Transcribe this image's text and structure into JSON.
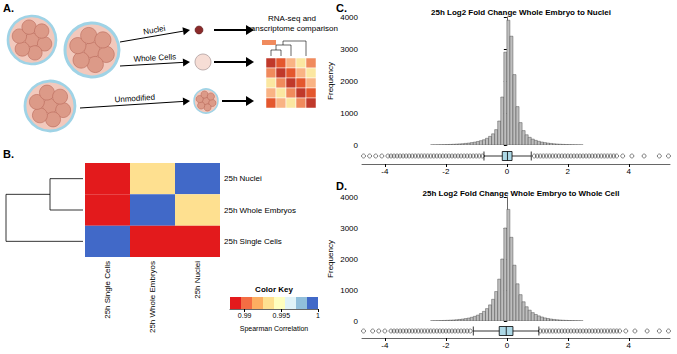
{
  "panels": [
    "A.",
    "B.",
    "C.",
    "D."
  ],
  "diagram": {
    "labels": [
      "Nuclei",
      "Whole Cells",
      "Unmodified"
    ],
    "target": [
      "RNA-seq and",
      "transcriptome comparison"
    ]
  },
  "chart_data": [
    {
      "type": "heatmap",
      "rows": [
        "25h Nuclei",
        "25h Whole Embryos",
        "25h Single Cells"
      ],
      "columns": [
        "25h Single Cells",
        "25h Whole Embryos",
        "25h Nuclei"
      ],
      "cells": [
        [
          0.988,
          0.993,
          1
        ],
        [
          0.988,
          1,
          0.993
        ],
        [
          1,
          0.988,
          0.988
        ]
      ],
      "colorbar": {
        "title": "Color Key",
        "label": "Spearman Correlation",
        "range": [
          0.988,
          1
        ],
        "ticks": [
          0.99,
          0.995,
          1
        ],
        "colors": [
          "#e31a1c",
          "#f46d43",
          "#fdae61",
          "#fee090",
          "#ffffbf",
          "#e0f3f8",
          "#91bfdb",
          "#4169c8"
        ]
      }
    },
    {
      "type": "histogram",
      "title": "25h Log2 Fold Change Whole Embryo to Nuclei",
      "y_label": "Frequency",
      "color": "#bebebe",
      "bins": [
        -2.5,
        -2.4,
        -2.3,
        -2.2,
        -2.1,
        -2.0,
        -1.9,
        -1.8,
        -1.7,
        -1.6,
        -1.5,
        -1.4,
        -1.3,
        -1.2,
        -1.1,
        -1.0,
        -0.9,
        -0.8,
        -0.7,
        -0.6,
        -0.5,
        -0.4,
        -0.3,
        -0.2,
        -0.1,
        0.0,
        0.1,
        0.2,
        0.3,
        0.4,
        0.5,
        0.6,
        0.7,
        0.8,
        0.9,
        1.0,
        1.1,
        1.2,
        1.3,
        1.4,
        1.5,
        1.6,
        1.7,
        1.8,
        1.9,
        2.0,
        2.1,
        2.2,
        2.3,
        2.4,
        2.5
      ],
      "values": [
        5,
        6,
        8,
        10,
        12,
        15,
        18,
        22,
        28,
        34,
        40,
        50,
        60,
        75,
        90,
        110,
        135,
        165,
        210,
        270,
        350,
        480,
        750,
        1500,
        2900,
        3900,
        3400,
        2200,
        1200,
        700,
        450,
        320,
        240,
        185,
        145,
        115,
        92,
        75,
        60,
        48,
        38,
        30,
        24,
        19,
        15,
        12,
        9,
        7,
        5,
        4
      ],
      "xlim": [
        -4.75,
        5.35
      ],
      "xticks": [
        -4,
        -2,
        0,
        2,
        4
      ],
      "ylim": [
        0,
        4000
      ],
      "yticks": [
        0,
        1000,
        2000,
        3000,
        4000
      ],
      "box": {
        "color": "#add8e6",
        "min": -0.75,
        "q1": -0.15,
        "median": 0.02,
        "q3": 0.17,
        "max": 0.8,
        "outliers": [
          -4.7,
          -4.5,
          -4.3,
          -4.1,
          -3.9,
          -3.8,
          -3.7,
          -3.6,
          -3.5,
          -3.4,
          -3.3,
          -3.2,
          -3.1,
          -3.0,
          -2.9,
          -2.8,
          -2.7,
          -2.6,
          -2.5,
          -2.4,
          -2.3,
          -2.2,
          -2.1,
          -2.0,
          -1.9,
          -1.8,
          -1.7,
          -1.6,
          -1.5,
          -1.4,
          -1.3,
          -1.2,
          -1.1,
          -1.0,
          -0.9,
          -0.8,
          0.9,
          1.0,
          1.1,
          1.2,
          1.3,
          1.4,
          1.5,
          1.6,
          1.7,
          1.8,
          1.9,
          2.0,
          2.1,
          2.2,
          2.3,
          2.4,
          2.5,
          2.6,
          2.7,
          2.8,
          2.9,
          3.0,
          3.1,
          3.2,
          3.3,
          3.4,
          3.5,
          3.6,
          3.8,
          4.1,
          4.5,
          5.0,
          5.3
        ]
      }
    },
    {
      "type": "histogram",
      "title": "25h Log2 Fold Change Whole Embryo to Whole Cell",
      "y_label": "Frequency",
      "color": "#bebebe",
      "bins": [
        -2.5,
        -2.4,
        -2.3,
        -2.2,
        -2.1,
        -2.0,
        -1.9,
        -1.8,
        -1.7,
        -1.6,
        -1.5,
        -1.4,
        -1.3,
        -1.2,
        -1.1,
        -1.0,
        -0.9,
        -0.8,
        -0.7,
        -0.6,
        -0.5,
        -0.4,
        -0.3,
        -0.2,
        -0.1,
        0.0,
        0.1,
        0.2,
        0.3,
        0.4,
        0.5,
        0.6,
        0.7,
        0.8,
        0.9,
        1.0,
        1.1,
        1.2,
        1.3,
        1.4,
        1.5,
        1.6,
        1.7,
        1.8,
        1.9,
        2.0,
        2.1,
        2.2,
        2.3,
        2.4,
        2.5
      ],
      "values": [
        8,
        10,
        12,
        15,
        18,
        22,
        27,
        33,
        40,
        50,
        62,
        78,
        95,
        120,
        150,
        190,
        240,
        310,
        400,
        520,
        700,
        950,
        1350,
        2000,
        3000,
        3600,
        2700,
        1800,
        1200,
        850,
        620,
        460,
        350,
        270,
        210,
        165,
        130,
        100,
        80,
        64,
        50,
        40,
        32,
        25,
        20,
        16,
        13,
        10,
        8,
        6
      ],
      "xlim": [
        -4.75,
        5.35
      ],
      "xticks": [
        -4,
        -2,
        0,
        2,
        4
      ],
      "ylim": [
        0,
        4000
      ],
      "yticks": [
        0,
        1000,
        2000,
        3000,
        4000
      ],
      "box": {
        "color": "#add8e6",
        "min": -1.1,
        "q1": -0.25,
        "median": -0.02,
        "q3": 0.2,
        "max": 1.05,
        "outliers": [
          -4.7,
          -4.4,
          -4.2,
          -4.0,
          -3.8,
          -3.7,
          -3.6,
          -3.5,
          -3.4,
          -3.3,
          -3.2,
          -3.1,
          -3.0,
          -2.9,
          -2.8,
          -2.7,
          -2.6,
          -2.5,
          -2.4,
          -2.3,
          -2.2,
          -2.1,
          -2.0,
          -1.9,
          -1.8,
          -1.7,
          -1.6,
          -1.5,
          -1.4,
          -1.3,
          -1.2,
          1.1,
          1.2,
          1.3,
          1.4,
          1.5,
          1.6,
          1.7,
          1.8,
          1.9,
          2.0,
          2.1,
          2.2,
          2.3,
          2.4,
          2.5,
          2.6,
          2.7,
          2.8,
          2.9,
          3.0,
          3.1,
          3.2,
          3.3,
          3.4,
          3.5,
          3.6,
          3.7,
          3.9,
          4.2,
          4.6,
          5.0,
          5.3
        ]
      }
    }
  ]
}
